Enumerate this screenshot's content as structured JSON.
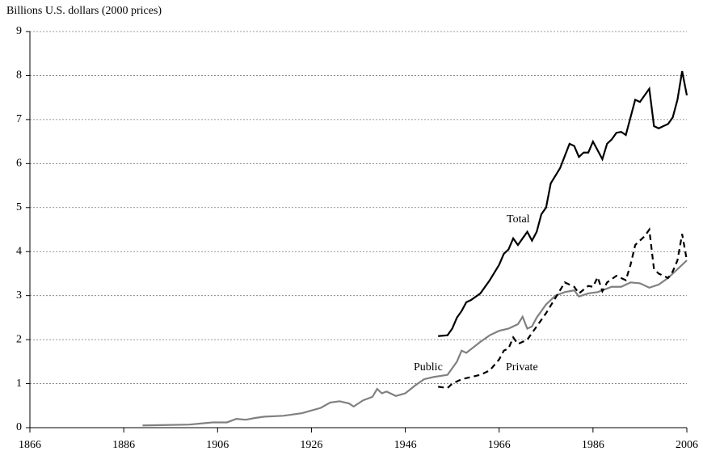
{
  "chart_data": {
    "type": "line",
    "y_axis_label": "Billions U.S. dollars (2000 prices)",
    "xlim": [
      1866,
      2006
    ],
    "xticks": [
      1866,
      1886,
      1906,
      1926,
      1946,
      1966,
      1986,
      2006
    ],
    "ylim": [
      0,
      9
    ],
    "yticks": [
      0,
      1,
      2,
      3,
      4,
      5,
      6,
      7,
      8,
      9
    ],
    "grid": true,
    "annotations": [
      "Total",
      "Public",
      "Private"
    ],
    "series": [
      {
        "name": "Total",
        "color": "#000000",
        "dash": false,
        "x": [
          1953,
          1955,
          1956,
          1957,
          1958,
          1959,
          1960,
          1962,
          1964,
          1966,
          1967,
          1968,
          1969,
          1970,
          1972,
          1973,
          1974,
          1975,
          1976,
          1977,
          1979,
          1981,
          1982,
          1983,
          1984,
          1985,
          1986,
          1987,
          1988,
          1989,
          1990,
          1991,
          1992,
          1993,
          1995,
          1996,
          1998,
          1999,
          2000,
          2001,
          2002,
          2003,
          2004,
          2005,
          2006
        ],
        "values": [
          2.08,
          2.1,
          2.25,
          2.5,
          2.65,
          2.85,
          2.9,
          3.05,
          3.35,
          3.7,
          3.95,
          4.05,
          4.3,
          4.15,
          4.45,
          4.25,
          4.45,
          4.85,
          5.0,
          5.55,
          5.9,
          6.45,
          6.4,
          6.15,
          6.25,
          6.25,
          6.5,
          6.3,
          6.1,
          6.45,
          6.55,
          6.7,
          6.72,
          6.65,
          7.45,
          7.4,
          7.7,
          6.85,
          6.8,
          6.85,
          6.9,
          7.05,
          7.45,
          8.1,
          7.55
        ]
      },
      {
        "name": "Public",
        "color": "#808080",
        "dash": false,
        "x": [
          1890,
          1895,
          1900,
          1905,
          1908,
          1910,
          1912,
          1914,
          1916,
          1920,
          1924,
          1928,
          1930,
          1932,
          1934,
          1935,
          1937,
          1939,
          1940,
          1941,
          1942,
          1944,
          1946,
          1948,
          1950,
          1952,
          1955,
          1957,
          1958,
          1959,
          1962,
          1964,
          1966,
          1968,
          1970,
          1971,
          1972,
          1973,
          1974,
          1976,
          1978,
          1980,
          1982,
          1983,
          1985,
          1987,
          1990,
          1992,
          1994,
          1996,
          1998,
          2000,
          2002,
          2004,
          2006
        ],
        "values": [
          0.05,
          0.06,
          0.07,
          0.12,
          0.12,
          0.2,
          0.18,
          0.22,
          0.25,
          0.27,
          0.33,
          0.45,
          0.57,
          0.6,
          0.55,
          0.48,
          0.62,
          0.7,
          0.88,
          0.78,
          0.82,
          0.72,
          0.78,
          0.95,
          1.1,
          1.15,
          1.2,
          1.5,
          1.75,
          1.7,
          1.95,
          2.1,
          2.2,
          2.25,
          2.35,
          2.52,
          2.25,
          2.3,
          2.5,
          2.8,
          3.0,
          3.08,
          3.12,
          2.98,
          3.05,
          3.08,
          3.2,
          3.2,
          3.3,
          3.28,
          3.18,
          3.25,
          3.4,
          3.6,
          3.8
        ]
      },
      {
        "name": "Private",
        "color": "#000000",
        "dash": true,
        "x": [
          1953,
          1955,
          1956,
          1958,
          1960,
          1962,
          1964,
          1966,
          1967,
          1968,
          1969,
          1970,
          1972,
          1974,
          1976,
          1978,
          1980,
          1982,
          1983,
          1985,
          1986,
          1987,
          1988,
          1989,
          1991,
          1993,
          1994,
          1995,
          1997,
          1998,
          1999,
          2000,
          2002,
          2003,
          2004,
          2005,
          2006
        ],
        "values": [
          0.93,
          0.9,
          1.0,
          1.1,
          1.15,
          1.2,
          1.3,
          1.55,
          1.75,
          1.8,
          2.05,
          1.9,
          2.0,
          2.3,
          2.6,
          2.95,
          3.3,
          3.2,
          3.05,
          3.22,
          3.2,
          3.42,
          3.1,
          3.3,
          3.45,
          3.35,
          3.7,
          4.15,
          4.35,
          4.5,
          3.6,
          3.5,
          3.4,
          3.55,
          3.8,
          4.4,
          3.8
        ]
      }
    ]
  }
}
